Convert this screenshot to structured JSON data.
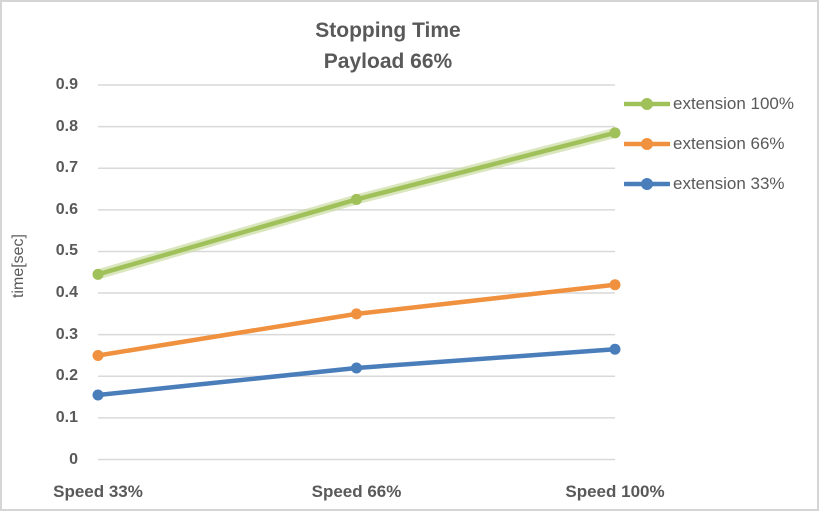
{
  "chart_data": {
    "type": "line",
    "title": "Stopping Time",
    "subtitle": "Payload 66%",
    "ylabel": "time[sec]",
    "xlabel": "",
    "categories": [
      "Speed 33%",
      "Speed 66%",
      "Speed 100%"
    ],
    "series": [
      {
        "name": "extension 100%",
        "color": "#A0C05A",
        "halo_color": "#CBDCA2",
        "halo": true,
        "values": [
          0.445,
          0.625,
          0.785
        ]
      },
      {
        "name": "extension 66%",
        "color": "#F0913F",
        "halo_color": "",
        "halo": false,
        "values": [
          0.25,
          0.35,
          0.42
        ]
      },
      {
        "name": "extension 33%",
        "color": "#4A7EBB",
        "halo_color": "",
        "halo": false,
        "values": [
          0.155,
          0.22,
          0.265
        ]
      }
    ],
    "ylim": [
      0,
      0.9
    ],
    "ytick_step": 0.1,
    "ytick_labels": [
      "0",
      "0.1",
      "0.2",
      "0.3",
      "0.4",
      "0.5",
      "0.6",
      "0.7",
      "0.8",
      "0.9"
    ],
    "grid": true,
    "legend_position": "right",
    "text_color": "#595959",
    "grid_color": "#D9D9D9"
  }
}
